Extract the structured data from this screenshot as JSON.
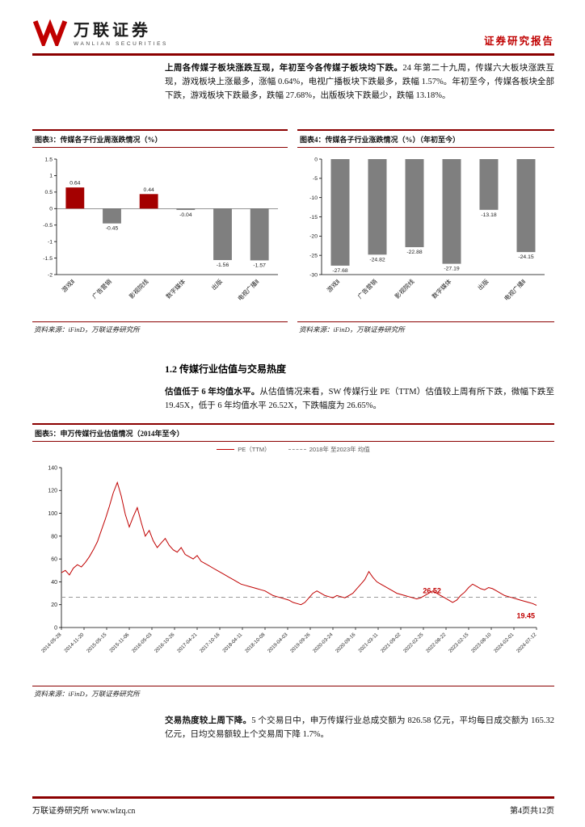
{
  "header": {
    "logo_cn": "万联证券",
    "logo_en": "WANLIAN SECURITIES",
    "report_type": "证券研究报告"
  },
  "paragraphs": {
    "p1_lead": "上周各传媒子板块涨跌互现，年初至今各传媒子板块均下跌。",
    "p1_rest": "24 年第二十九周，传媒六大板块涨跌互现，游戏板块上涨最多，涨幅 0.64%，电视广播板块下跌最多，跌幅 1.57%。年初至今，传媒各板块全部下跌，游戏板块下跌最多，跌幅 27.68%，出版板块下跌最少，跌幅 13.18%。",
    "p2_lead": "估值低于 6 年均值水平。",
    "p2_rest": "从估值情况来看，SW 传媒行业 PE（TTM）估值较上周有所下跌，微幅下跌至 19.45X，低于 6 年均值水平 26.52X，下跌幅度为 26.65%。",
    "p3_lead": "交易热度较上周下降。",
    "p3_rest": "5 个交易日中，申万传媒行业总成交额为 826.58 亿元，平均每日成交额为 165.32 亿元，日均交易额较上个交易周下降 1.7%。"
  },
  "section": {
    "heading": "1.2 传媒行业估值与交易热度"
  },
  "figures": {
    "fig3_title": "图表3：传媒各子行业周涨跌情况（%）",
    "fig4_title": "图表4：传媒各子行业涨跌情况（%）（年初至今）",
    "fig5_title": "图表5：申万传媒行业估值情况（2014年至今）",
    "source": "资料来源：iFinD，万联证券研究所"
  },
  "footer": {
    "left": "万联证券研究所  www.wlzq.cn",
    "right": "第4页共12页"
  },
  "colors": {
    "accent_red": "#c00000",
    "rule_red": "#8b0000",
    "bar_red": "#a40000",
    "bar_gray": "#7f7f7f",
    "mean_line_gray": "#999999"
  },
  "chart_data": [
    {
      "type": "bar",
      "title": "传媒各子行业周涨跌情况（%）",
      "categories": [
        "游戏Ⅱ",
        "广告营销",
        "影视院线",
        "数字媒体",
        "出版",
        "电视广播Ⅱ"
      ],
      "values": [
        0.64,
        -0.45,
        0.44,
        -0.04,
        -1.56,
        -1.57
      ],
      "bar_colors": [
        "#a40000",
        "#7f7f7f",
        "#a40000",
        "#7f7f7f",
        "#7f7f7f",
        "#7f7f7f"
      ],
      "ylim": [
        -2,
        1.5
      ],
      "yticks": [
        1.5,
        1,
        0.5,
        0,
        -0.5,
        -1,
        -1.5,
        -2
      ]
    },
    {
      "type": "bar",
      "title": "传媒各子行业涨跌情况（%）（年初至今）",
      "categories": [
        "游戏Ⅱ",
        "广告营销",
        "影视院线",
        "数字媒体",
        "出版",
        "电视广播Ⅱ"
      ],
      "values": [
        -27.68,
        -24.82,
        -22.88,
        -27.19,
        -13.18,
        -24.15
      ],
      "bar_color": "#7f7f7f",
      "ylim": [
        -30,
        0
      ],
      "yticks": [
        0,
        -5,
        -10,
        -15,
        -20,
        -25,
        -30
      ]
    },
    {
      "type": "line",
      "title": "申万传媒行业估值情况（2014年至今）",
      "legend": [
        "PE（TTM）",
        "2018年 至2023年 均值"
      ],
      "line_color": "#c00000",
      "mean_value": 26.52,
      "last_value": 19.45,
      "ylim": [
        0,
        140
      ],
      "yticks": [
        0,
        20,
        40,
        60,
        80,
        100,
        120,
        140
      ],
      "x_labels": [
        "2014-05-28",
        "2014-11-20",
        "2015-05-15",
        "2015-11-06",
        "2016-05-03",
        "2016-10-26",
        "2017-04-21",
        "2017-10-16",
        "2018-04-11",
        "2018-10-08",
        "2019-04-03",
        "2019-09-26",
        "2020-03-24",
        "2020-09-16",
        "2021-03-11",
        "2021-09-02",
        "2022-02-25",
        "2022-08-22",
        "2023-02-15",
        "2023-08-10",
        "2024-02-01",
        "2024-07-12"
      ],
      "values": [
        48,
        50,
        46,
        52,
        55,
        53,
        57,
        62,
        68,
        75,
        85,
        95,
        106,
        118,
        127,
        115,
        99,
        88,
        97,
        105,
        92,
        80,
        85,
        76,
        70,
        74,
        78,
        72,
        68,
        66,
        70,
        64,
        62,
        60,
        63,
        58,
        56,
        54,
        52,
        50,
        48,
        46,
        44,
        42,
        40,
        38,
        37,
        36,
        35,
        34,
        33,
        32,
        30,
        28,
        27,
        26,
        25,
        24,
        22,
        21,
        20,
        22,
        26,
        30,
        32,
        30,
        28,
        27,
        26,
        28,
        27,
        26,
        28,
        30,
        34,
        38,
        42,
        49,
        44,
        40,
        38,
        36,
        34,
        32,
        30,
        29,
        28,
        27,
        26,
        25,
        26,
        28,
        30,
        32,
        30,
        28,
        26,
        24,
        22,
        24,
        28,
        31,
        35,
        38,
        36,
        34,
        33,
        35,
        34,
        32,
        30,
        28,
        27,
        26,
        25,
        24,
        23,
        22,
        21,
        19.45
      ]
    }
  ]
}
